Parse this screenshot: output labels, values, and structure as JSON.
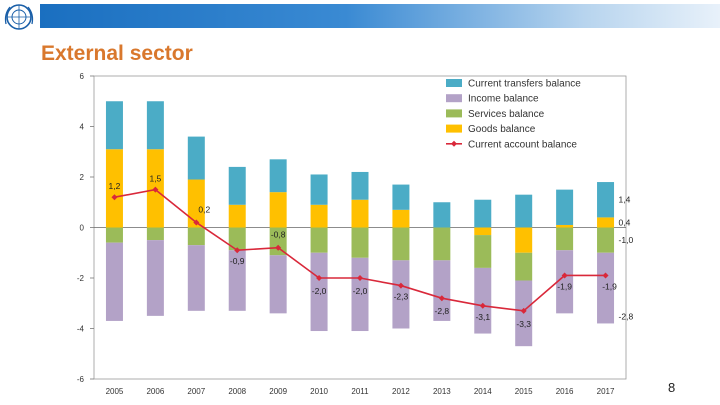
{
  "header": {
    "title": "External sector"
  },
  "footer": {
    "page_number": "8"
  },
  "colors": {
    "current_transfers": "#4bacc6",
    "income": "#b3a2c7",
    "services": "#9bbb59",
    "goods": "#ffc000",
    "current_account": "#d9283a"
  },
  "chart_data": {
    "type": "bar",
    "stacked": true,
    "categories": [
      "2005",
      "2006",
      "2007",
      "2008",
      "2009",
      "2010",
      "2011",
      "2012",
      "2013",
      "2014",
      "2015",
      "2016",
      "2017"
    ],
    "ylim": [
      -6,
      6
    ],
    "yticks": [
      -6,
      -4,
      -2,
      0,
      2,
      4,
      6
    ],
    "series": [
      {
        "name": "Current transfers balance",
        "key": "current_transfers",
        "values": [
          1.9,
          1.9,
          1.7,
          1.5,
          1.3,
          1.2,
          1.1,
          1.0,
          1.0,
          1.1,
          1.3,
          1.4,
          1.4
        ]
      },
      {
        "name": "Income balance",
        "key": "income",
        "values": [
          -3.1,
          -3.0,
          -2.6,
          -2.4,
          -2.3,
          -3.1,
          -2.9,
          -2.7,
          -2.4,
          -2.6,
          -2.6,
          -2.5,
          -2.8
        ]
      },
      {
        "name": "Services balance",
        "key": "services",
        "values": [
          -0.6,
          -0.5,
          -0.7,
          -0.9,
          -1.1,
          -1.0,
          -1.2,
          -1.3,
          -1.3,
          -1.3,
          -1.1,
          -0.9,
          -1.0
        ]
      },
      {
        "name": "Goods balance",
        "key": "goods",
        "values": [
          3.1,
          3.1,
          1.9,
          0.9,
          1.4,
          0.9,
          1.1,
          0.7,
          0.0,
          -0.3,
          -1.0,
          0.1,
          0.4
        ]
      }
    ],
    "line": {
      "name": "Current account balance",
      "key": "current_account",
      "values": [
        1.2,
        1.5,
        0.2,
        -0.9,
        -0.8,
        -2.0,
        -2.0,
        -2.3,
        -2.8,
        -3.1,
        -3.3,
        -1.9,
        -1.9
      ]
    },
    "data_labels": {
      "current_account": [
        "1,2",
        "1,5",
        "0,2",
        "-0,9",
        "-0,8",
        "-2,0",
        "-2,0",
        "-2,3",
        "-2,8",
        "-3,1",
        "-3,3",
        "-1,9",
        "-1,9"
      ],
      "extra_2017": [
        {
          "series": "current_transfers",
          "text": "1,4"
        },
        {
          "series": "goods",
          "text": "0,4"
        },
        {
          "series": "services",
          "text": "-1,0"
        },
        {
          "series": "income",
          "text": "-2,8"
        }
      ]
    },
    "ytick_labels": [
      "-6",
      "-4",
      "-2",
      "0",
      "2",
      "4",
      "6"
    ],
    "legend": "top-right"
  }
}
